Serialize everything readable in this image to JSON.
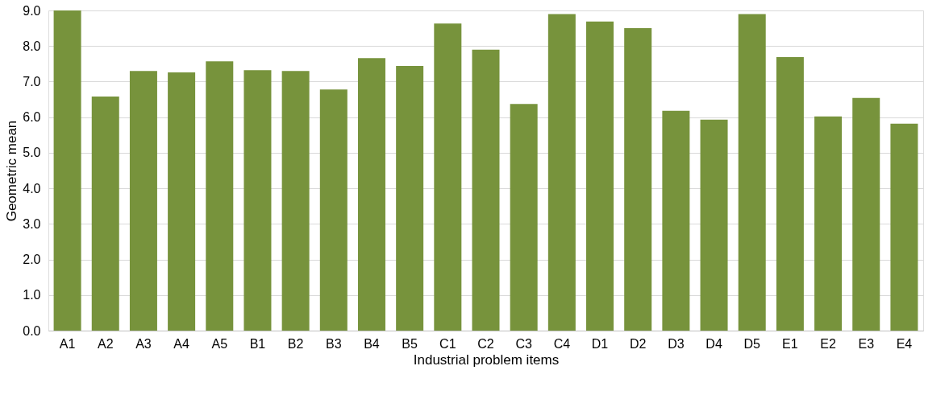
{
  "chart_data": {
    "type": "bar",
    "xlabel": "Industrial problem items",
    "ylabel": "Geometric mean",
    "categories": [
      "A1",
      "A2",
      "A3",
      "A4",
      "A5",
      "B1",
      "B2",
      "B3",
      "B4",
      "B5",
      "C1",
      "C2",
      "C3",
      "C4",
      "D1",
      "D2",
      "D3",
      "D4",
      "D5",
      "E1",
      "E2",
      "E3",
      "E4"
    ],
    "values": [
      9.0,
      6.58,
      7.3,
      7.26,
      7.57,
      7.32,
      7.3,
      6.78,
      7.66,
      7.44,
      8.63,
      7.9,
      6.37,
      8.9,
      8.69,
      8.5,
      6.18,
      5.93,
      8.9,
      7.69,
      6.02,
      6.54,
      5.82
    ],
    "color": "#77933c",
    "ylim": [
      0,
      9
    ],
    "yticks": [
      {
        "value": 0,
        "label": "0.0"
      },
      {
        "value": 1,
        "label": "1.0"
      },
      {
        "value": 2,
        "label": "2.0"
      },
      {
        "value": 3,
        "label": "3.0"
      },
      {
        "value": 4,
        "label": "4.0"
      },
      {
        "value": 5,
        "label": "5.0"
      },
      {
        "value": 6,
        "label": "6.0"
      },
      {
        "value": 7,
        "label": "7.0"
      },
      {
        "value": 8,
        "label": "8.0"
      },
      {
        "value": 9,
        "label": "9.0"
      }
    ],
    "grid": "y"
  }
}
